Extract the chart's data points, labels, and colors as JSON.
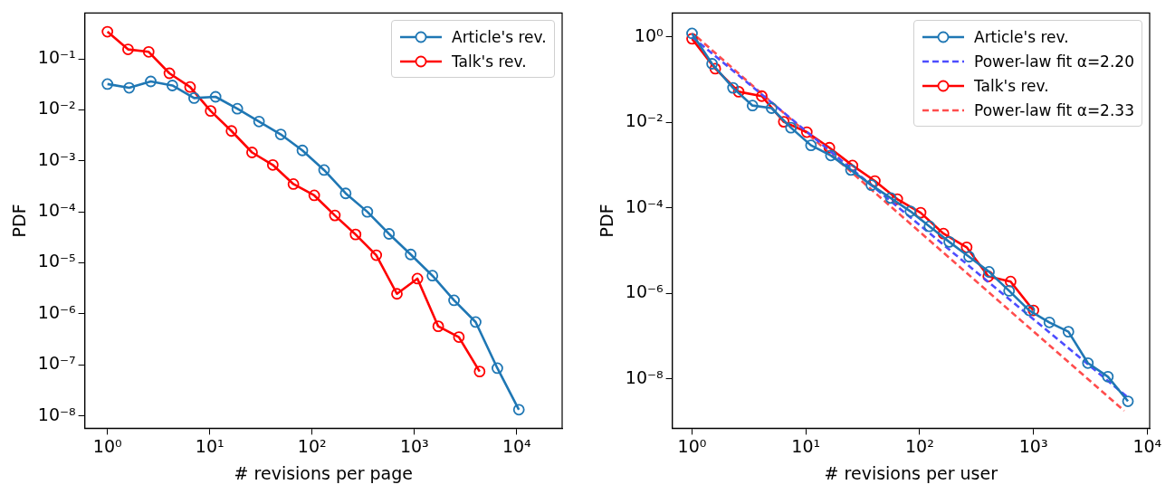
{
  "chart_data": [
    {
      "type": "line",
      "xlabel": "# revisions per page",
      "ylabel": "PDF",
      "log": "xy",
      "xlim": [
        0.63,
        27800
      ],
      "ylim": [
        5.7e-09,
        0.79
      ],
      "xticks": [
        {
          "value": 1,
          "label": "10⁰"
        },
        {
          "value": 10,
          "label": "10¹"
        },
        {
          "value": 100,
          "label": "10²"
        },
        {
          "value": 1000,
          "label": "10³"
        },
        {
          "value": 10000,
          "label": "10⁴"
        }
      ],
      "yticks": [
        {
          "value": 1e-08,
          "label": "10⁻⁸"
        },
        {
          "value": 1e-07,
          "label": "10⁻⁷"
        },
        {
          "value": 1e-06,
          "label": "10⁻⁶"
        },
        {
          "value": 1e-05,
          "label": "10⁻⁵"
        },
        {
          "value": 0.0001,
          "label": "10⁻⁴"
        },
        {
          "value": 0.001,
          "label": "10⁻³"
        },
        {
          "value": 0.01,
          "label": "10⁻²"
        },
        {
          "value": 0.1,
          "label": "10⁻¹"
        }
      ],
      "legend": "top right",
      "marker": "circle",
      "grid": false,
      "series": [
        {
          "name": "Article's rev.",
          "color": "#1f77b4",
          "x": [
            1,
            1.63,
            2.65,
            4.31,
            7.03,
            11.4,
            18.6,
            30.3,
            49.4,
            80.4,
            131,
            213,
            347,
            565,
            920,
            1500,
            2440,
            3970,
            6470,
            10500
          ],
          "values": [
            0.032,
            0.027,
            0.036,
            0.03,
            0.017,
            0.018,
            0.0105,
            0.0059,
            0.0033,
            0.0016,
            0.00066,
            0.00023,
            0.0001,
            3.7e-05,
            1.46e-05,
            5.6e-06,
            1.84e-06,
            6.9e-07,
            8.6e-08,
            1.32e-08
          ]
        },
        {
          "name": "Talk's rev.",
          "color": "#ff0000",
          "x": [
            1,
            1.59,
            2.53,
            4.03,
            6.42,
            10.2,
            16.3,
            25.9,
            41.3,
            65.7,
            105,
            167,
            266,
            424,
            675,
            1070,
            1710,
            2720,
            4340
          ],
          "values": [
            0.34,
            0.153,
            0.137,
            0.052,
            0.028,
            0.0095,
            0.00385,
            0.00146,
            0.00083,
            0.00035,
            0.00021,
            8.5e-05,
            3.6e-05,
            1.41e-05,
            2.47e-06,
            4.9e-06,
            5.7e-07,
            3.5e-07,
            7.4e-08
          ]
        }
      ]
    },
    {
      "type": "line",
      "xlabel": "# revisions per user",
      "ylabel": "PDF",
      "log": "xy",
      "xlim": [
        0.67,
        10500
      ],
      "ylim": [
        7.2e-10,
        3.6
      ],
      "xticks": [
        {
          "value": 1,
          "label": "10⁰"
        },
        {
          "value": 10,
          "label": "10¹"
        },
        {
          "value": 100,
          "label": "10²"
        },
        {
          "value": 1000,
          "label": "10³"
        },
        {
          "value": 10000,
          "label": "10⁴"
        }
      ],
      "yticks": [
        {
          "value": 1e-08,
          "label": "10⁻⁸"
        },
        {
          "value": 1e-06,
          "label": "10⁻⁶"
        },
        {
          "value": 0.0001,
          "label": "10⁻⁴"
        },
        {
          "value": 0.01,
          "label": "10⁻²"
        },
        {
          "value": 1,
          "label": "10⁰"
        }
      ],
      "legend": "top right",
      "marker": "circle",
      "grid": false,
      "series": [
        {
          "name": "Article's rev.",
          "color": "#1f77b4",
          "x": [
            1,
            1.5,
            2.29,
            3.4,
            5.0,
            7.4,
            11.1,
            16.6,
            24.9,
            37.7,
            55.7,
            83,
            122,
            182,
            272,
            407,
            611,
            918,
            1380,
            2030,
            3010,
            4510,
            6770
          ],
          "values": [
            1.2,
            0.234,
            0.064,
            0.0247,
            0.0215,
            0.0075,
            0.0029,
            0.00168,
            0.00077,
            0.00034,
            0.00017,
            8.3e-05,
            3.7e-05,
            1.6e-05,
            7.2e-06,
            3.2e-06,
            1.15e-06,
            4e-07,
            2.1e-07,
            1.27e-07,
            2.35e-08,
            1.13e-08,
            3e-09
          ]
        },
        {
          "name": "Power-law fit α=2.20",
          "color": "#4d4dff",
          "line_style": "dashed",
          "marker": "none",
          "x": [
            1,
            6770
          ],
          "values": [
            1.0,
            3.7e-09
          ]
        },
        {
          "name": "Talk's rev.",
          "color": "#ff0000",
          "x": [
            1,
            1.6,
            2.57,
            4.1,
            6.4,
            10.2,
            16.1,
            25.7,
            40.4,
            63.6,
            102,
            162,
            259,
            401,
            630,
            1000
          ],
          "values": [
            0.9,
            0.18,
            0.052,
            0.041,
            0.0103,
            0.0059,
            0.00255,
            0.00098,
            0.000425,
            0.00016,
            7.7e-05,
            2.5e-05,
            1.2e-05,
            2.5e-06,
            1.89e-06,
            4e-07
          ]
        },
        {
          "name": "Power-law fit α=2.33",
          "color": "#ff4d4d",
          "line_style": "dashed",
          "marker": "none",
          "x": [
            1.1,
            6270
          ],
          "values": [
            1.0,
            1.8e-09
          ]
        }
      ]
    }
  ]
}
